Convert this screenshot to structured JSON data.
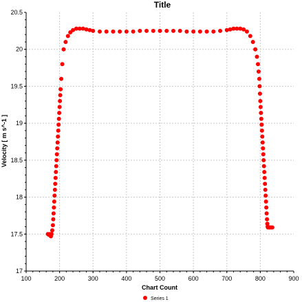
{
  "chart_data": {
    "type": "scatter",
    "title": "Title",
    "xlabel": "Chart Count",
    "ylabel": "Velocity [ m s^-1 ]",
    "xlim": [
      100,
      900
    ],
    "ylim": [
      17,
      20.5
    ],
    "x_ticks": [
      "100",
      "200",
      "300",
      "400",
      "500",
      "600",
      "700",
      "800",
      "900"
    ],
    "y_ticks": [
      "17",
      "17.5",
      "18",
      "18.5",
      "19",
      "19.5",
      "20",
      "20.5"
    ],
    "grid": true,
    "legend_position": "bottom",
    "series": [
      {
        "name": "Series 1",
        "color": "#ff0000",
        "x": [
          165,
          168,
          171,
          174,
          176,
          178,
          180,
          181,
          182,
          183,
          184,
          185,
          186,
          187,
          188,
          189,
          190,
          191,
          192,
          193,
          194,
          195,
          196,
          197,
          198,
          199,
          200,
          201,
          202,
          203,
          205,
          208,
          212,
          218,
          225,
          232,
          240,
          250,
          260,
          270,
          280,
          290,
          300,
          320,
          340,
          360,
          380,
          400,
          420,
          440,
          460,
          480,
          500,
          520,
          540,
          560,
          580,
          600,
          620,
          640,
          660,
          680,
          700,
          710,
          720,
          730,
          740,
          750,
          760,
          770,
          778,
          785,
          790,
          793,
          795,
          797,
          798,
          799,
          800,
          801,
          802,
          803,
          804,
          805,
          806,
          807,
          808,
          809,
          810,
          811,
          812,
          813,
          814,
          815,
          816,
          817,
          818,
          819,
          820,
          821,
          822,
          823,
          825,
          828,
          832,
          836
        ],
        "y": [
          17.5,
          17.49,
          17.5,
          17.47,
          17.5,
          17.55,
          17.62,
          17.7,
          17.78,
          17.86,
          17.94,
          18.02,
          18.1,
          18.18,
          18.26,
          18.34,
          18.42,
          18.5,
          18.58,
          18.66,
          18.74,
          18.82,
          18.9,
          18.98,
          19.06,
          19.14,
          19.22,
          19.3,
          19.38,
          19.46,
          19.6,
          19.8,
          20.0,
          20.1,
          20.18,
          20.23,
          20.26,
          20.28,
          20.28,
          20.28,
          20.27,
          20.26,
          20.25,
          20.24,
          20.24,
          20.24,
          20.24,
          20.24,
          20.24,
          20.25,
          20.25,
          20.25,
          20.25,
          20.25,
          20.25,
          20.25,
          20.24,
          20.24,
          20.24,
          20.24,
          20.24,
          20.25,
          20.26,
          20.27,
          20.28,
          20.28,
          20.28,
          20.27,
          20.24,
          20.18,
          20.1,
          20.0,
          19.9,
          19.8,
          19.7,
          19.6,
          19.5,
          19.4,
          19.3,
          19.22,
          19.14,
          19.06,
          18.98,
          18.9,
          18.82,
          18.74,
          18.66,
          18.58,
          18.5,
          18.42,
          18.34,
          18.26,
          18.18,
          18.1,
          18.02,
          17.94,
          17.86,
          17.78,
          17.7,
          17.64,
          17.6,
          17.59,
          17.59,
          17.59,
          17.59,
          17.59
        ]
      }
    ]
  }
}
